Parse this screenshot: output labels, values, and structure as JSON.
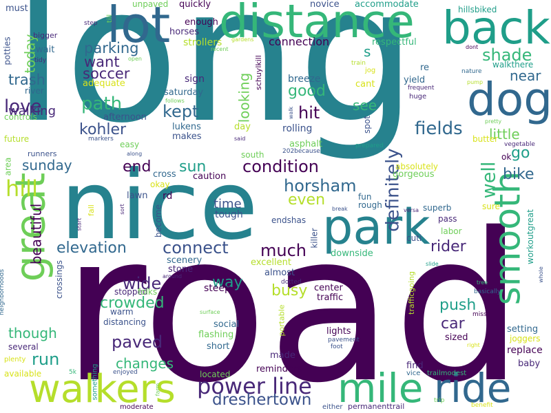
{
  "palette": {
    "dark_purple": "#440154",
    "indigo": "#482878",
    "blue": "#3b528b",
    "steel_blue": "#31688e",
    "teal_blue": "#26828e",
    "teal": "#1f9e89",
    "green": "#35b779",
    "light_green": "#6ece58",
    "lime": "#b5de2b",
    "yellow": "#d8e219"
  },
  "words": [
    {
      "text": "long",
      "color": "#26828e"
    },
    {
      "text": "road",
      "color": "#440154"
    },
    {
      "text": "nice",
      "color": "#26828e"
    },
    {
      "text": "distance",
      "color": "#35b779"
    },
    {
      "text": "lot",
      "color": "#31688e"
    },
    {
      "text": "back",
      "color": "#1f9e89"
    },
    {
      "text": "dog",
      "color": "#31688e"
    },
    {
      "text": "park",
      "color": "#26828e"
    },
    {
      "text": "great",
      "color": "#6ece58"
    },
    {
      "text": "smooth",
      "color": "#35b779"
    },
    {
      "text": "walkers",
      "color": "#b5de2b"
    },
    {
      "text": "mile",
      "color": "#35b779"
    },
    {
      "text": "ride",
      "color": "#31688e"
    },
    {
      "text": "power line",
      "color": "#482878"
    },
    {
      "text": "dreshertown",
      "color": "#3b528b"
    },
    {
      "text": "definitely",
      "color": "#3b528b"
    },
    {
      "text": "condition",
      "color": "#440154"
    },
    {
      "text": "horsham",
      "color": "#31688e"
    },
    {
      "text": "fields",
      "color": "#31688e"
    },
    {
      "text": "well",
      "color": "#35b779"
    },
    {
      "text": "hill",
      "color": "#b5de2b"
    },
    {
      "text": "path",
      "color": "#35b779"
    },
    {
      "text": "love",
      "color": "#482878"
    },
    {
      "text": "kohler",
      "color": "#3b528b"
    },
    {
      "text": "kept",
      "color": "#31688e"
    },
    {
      "text": "hit",
      "color": "#440154"
    },
    {
      "text": "end",
      "color": "#440154"
    },
    {
      "text": "sun",
      "color": "#1f9e89"
    },
    {
      "text": "even",
      "color": "#b5de2b"
    },
    {
      "text": "connect",
      "color": "#3b528b"
    },
    {
      "text": "much",
      "color": "#440154"
    },
    {
      "text": "wide",
      "color": "#482878"
    },
    {
      "text": "crowded",
      "color": "#35b779"
    },
    {
      "text": "paved",
      "color": "#482878"
    },
    {
      "text": "changes",
      "color": "#35b779"
    },
    {
      "text": "run",
      "color": "#1f9e89"
    },
    {
      "text": "though",
      "color": "#35b779"
    },
    {
      "text": "elevation",
      "color": "#31688e"
    },
    {
      "text": "beautiful",
      "color": "#440154"
    },
    {
      "text": "sunday",
      "color": "#31688e"
    },
    {
      "text": "soccer",
      "color": "#482878"
    },
    {
      "text": "want",
      "color": "#482878"
    },
    {
      "text": "parking",
      "color": "#31688e"
    },
    {
      "text": "trash",
      "color": "#31688e"
    },
    {
      "text": "walking",
      "color": "#482878"
    },
    {
      "text": "today",
      "color": "#6ece58"
    },
    {
      "text": "shade",
      "color": "#35b779"
    },
    {
      "text": "near",
      "color": "#31688e"
    },
    {
      "text": "looking",
      "color": "#6ece58"
    },
    {
      "text": "good",
      "color": "#35b779"
    },
    {
      "text": "see",
      "color": "#35b779"
    },
    {
      "text": "s",
      "color": "#1f9e89"
    },
    {
      "text": "go",
      "color": "#1f9e89"
    },
    {
      "text": "little",
      "color": "#6ece58"
    },
    {
      "text": "bike",
      "color": "#31688e"
    },
    {
      "text": "rider",
      "color": "#482878"
    },
    {
      "text": "push",
      "color": "#1f9e89"
    },
    {
      "text": "car",
      "color": "#482878"
    },
    {
      "text": "busy",
      "color": "#b5de2b"
    },
    {
      "text": "way",
      "color": "#1f9e89"
    },
    {
      "text": "time",
      "color": "#3b528b"
    },
    {
      "text": "connection",
      "color": "#440154"
    },
    {
      "text": "accommodate",
      "color": "#1f9e89"
    },
    {
      "text": "hillsbiked",
      "color": "#1f9e89"
    },
    {
      "text": "walkthere",
      "color": "#1f9e89"
    },
    {
      "text": "novice",
      "color": "#3b528b"
    },
    {
      "text": "quickly",
      "color": "#440154"
    },
    {
      "text": "unpaved",
      "color": "#6ece58"
    },
    {
      "text": "must",
      "color": "#3b528b"
    },
    {
      "text": "potties",
      "color": "#3b528b"
    },
    {
      "text": "bigger",
      "color": "#482878"
    },
    {
      "text": "wait",
      "color": "#31688e"
    },
    {
      "text": "tidy",
      "color": "#482878"
    },
    {
      "text": "river",
      "color": "#31688e"
    },
    {
      "text": "controls",
      "color": "#6ece58"
    },
    {
      "text": "future",
      "color": "#b5de2b"
    },
    {
      "text": "area",
      "color": "#6ece58"
    },
    {
      "text": "runners",
      "color": "#3b528b"
    },
    {
      "text": "plenty",
      "color": "#d8e219"
    },
    {
      "text": "available",
      "color": "#d8e219"
    },
    {
      "text": "several",
      "color": "#482878"
    },
    {
      "text": "5k",
      "color": "#35b779"
    },
    {
      "text": "neighborhoods",
      "color": "#31688e"
    },
    {
      "text": "crossings",
      "color": "#3b528b"
    },
    {
      "text": "something",
      "color": "#1f9e89"
    },
    {
      "text": "enjoyed",
      "color": "#3b528b"
    },
    {
      "text": "farm",
      "color": "#6ece58"
    },
    {
      "text": "moderate",
      "color": "#440154"
    },
    {
      "text": "either",
      "color": "#3b528b"
    },
    {
      "text": "permanenttrail",
      "color": "#482878"
    },
    {
      "text": "trip",
      "color": "#6ece58"
    },
    {
      "text": "benefit",
      "color": "#d8e219"
    },
    {
      "text": "vice",
      "color": "#31688e"
    },
    {
      "text": "trailmodest",
      "color": "#35b779"
    },
    {
      "text": "baby",
      "color": "#482878"
    },
    {
      "text": "replace",
      "color": "#440154"
    },
    {
      "text": "joggers",
      "color": "#d8e219"
    },
    {
      "text": "setting",
      "color": "#31688e"
    },
    {
      "text": "workoutgreat",
      "color": "#1f9e89"
    },
    {
      "text": "whole",
      "color": "#3b528b"
    },
    {
      "text": "tree",
      "color": "#35b779"
    },
    {
      "text": "basically",
      "color": "#31688e"
    },
    {
      "text": "miss",
      "color": "#440154"
    },
    {
      "text": "slide",
      "color": "#1f9e89"
    },
    {
      "text": "cuti",
      "color": "#3b528b"
    },
    {
      "text": "pass",
      "color": "#482878"
    },
    {
      "text": "sure",
      "color": "#d8e219"
    },
    {
      "text": "labor",
      "color": "#6ece58"
    },
    {
      "text": "superb",
      "color": "#31688e"
    },
    {
      "text": "ok",
      "color": "#440154"
    },
    {
      "text": "gorgeous",
      "color": "#6ece58"
    },
    {
      "text": "absolutely",
      "color": "#d8e219"
    },
    {
      "text": "butter",
      "color": "#d8e219"
    },
    {
      "text": "vegetable",
      "color": "#482878"
    },
    {
      "text": "pretty",
      "color": "#6ece58"
    },
    {
      "text": "prepared",
      "color": "#1f9e89"
    },
    {
      "text": "spot",
      "color": "#3b528b"
    },
    {
      "text": "huge",
      "color": "#482878"
    },
    {
      "text": "frequent",
      "color": "#482878"
    },
    {
      "text": "cant",
      "color": "#d8e219"
    },
    {
      "text": "yield",
      "color": "#31688e"
    },
    {
      "text": "re",
      "color": "#31688e"
    },
    {
      "text": "respectful",
      "color": "#35b779"
    },
    {
      "text": "dont",
      "color": "#440154"
    },
    {
      "text": "nature",
      "color": "#31688e"
    },
    {
      "text": "pump",
      "color": "#b5de2b"
    },
    {
      "text": "jog",
      "color": "#d8e219"
    },
    {
      "text": "train",
      "color": "#b5de2b"
    },
    {
      "text": "breeze",
      "color": "#31688e"
    },
    {
      "text": "asphalt",
      "color": "#6ece58"
    },
    {
      "text": "202because",
      "color": "#3b528b"
    },
    {
      "text": "said",
      "color": "#482878"
    },
    {
      "text": "rolling",
      "color": "#3b528b"
    },
    {
      "text": "schuylkill",
      "color": "#440154"
    },
    {
      "text": "walk",
      "color": "#3b528b"
    },
    {
      "text": "day",
      "color": "#b5de2b"
    },
    {
      "text": "south",
      "color": "#6ece58"
    },
    {
      "text": "gardens",
      "color": "#b5de2b"
    },
    {
      "text": "recent",
      "color": "#6ece58"
    },
    {
      "text": "strollers",
      "color": "#b5de2b"
    },
    {
      "text": "enough",
      "color": "#440154"
    },
    {
      "text": "horses",
      "color": "#482878"
    },
    {
      "text": "step",
      "color": "#482878"
    },
    {
      "text": "till",
      "color": "#6ece58"
    },
    {
      "text": "open",
      "color": "#6ece58"
    },
    {
      "text": "adequate",
      "color": "#d8e219"
    },
    {
      "text": "sign",
      "color": "#482878"
    },
    {
      "text": "saturday",
      "color": "#31688e"
    },
    {
      "text": "follows",
      "color": "#6ece58"
    },
    {
      "text": "afternoon",
      "color": "#3b528b"
    },
    {
      "text": "lukens",
      "color": "#31688e"
    },
    {
      "text": "makes",
      "color": "#3b528b"
    },
    {
      "text": "markers",
      "color": "#3b528b"
    },
    {
      "text": "easy",
      "color": "#6ece58"
    },
    {
      "text": "along",
      "color": "#3b528b"
    },
    {
      "text": "cross",
      "color": "#31688e"
    },
    {
      "text": "caution",
      "color": "#440154"
    },
    {
      "text": "okay",
      "color": "#d8e219"
    },
    {
      "text": "lawn",
      "color": "#3b528b"
    },
    {
      "text": "rd",
      "color": "#440154"
    },
    {
      "text": "fall",
      "color": "#d8e219"
    },
    {
      "text": "sort",
      "color": "#482878"
    },
    {
      "text": "start",
      "color": "#482878"
    },
    {
      "text": "become",
      "color": "#3b528b"
    },
    {
      "text": "tough",
      "color": "#3b528b"
    },
    {
      "text": "endshas",
      "color": "#3b528b"
    },
    {
      "text": "fun",
      "color": "#31688e"
    },
    {
      "text": "rough",
      "color": "#31688e"
    },
    {
      "text": "killer",
      "color": "#3b528b"
    },
    {
      "text": "break",
      "color": "#3b528b"
    },
    {
      "text": "versa",
      "color": "#482878"
    },
    {
      "text": "downside",
      "color": "#35b779"
    },
    {
      "text": "excellent",
      "color": "#b5de2b"
    },
    {
      "text": "almost",
      "color": "#3b528b"
    },
    {
      "text": "dotted",
      "color": "#482878"
    },
    {
      "text": "scenery",
      "color": "#31688e"
    },
    {
      "text": "stone",
      "color": "#482878"
    },
    {
      "text": "around",
      "color": "#482878"
    },
    {
      "text": "stopped",
      "color": "#482878"
    },
    {
      "text": "folks",
      "color": "#6ece58"
    },
    {
      "text": "steep",
      "color": "#440154"
    },
    {
      "text": "center",
      "color": "#440154"
    },
    {
      "text": "traffic",
      "color": "#440154"
    },
    {
      "text": "trafficgoing",
      "color": "#b5de2b"
    },
    {
      "text": "warm",
      "color": "#3b528b"
    },
    {
      "text": "distancing",
      "color": "#3b528b"
    },
    {
      "text": "surface",
      "color": "#6ece58"
    },
    {
      "text": "social",
      "color": "#31688e"
    },
    {
      "text": "flashing",
      "color": "#6ece58"
    },
    {
      "text": "short",
      "color": "#31688e"
    },
    {
      "text": "portable",
      "color": "#b5de2b"
    },
    {
      "text": "lights",
      "color": "#440154"
    },
    {
      "text": "pavement",
      "color": "#3b528b"
    },
    {
      "text": "foot",
      "color": "#3b528b"
    },
    {
      "text": "sized",
      "color": "#440154"
    },
    {
      "text": "made",
      "color": "#482878"
    },
    {
      "text": "located",
      "color": "#6ece58"
    },
    {
      "text": "reminders",
      "color": "#440154"
    },
    {
      "text": "find",
      "color": "#482878"
    },
    {
      "text": "right",
      "color": "#d8e219"
    }
  ]
}
